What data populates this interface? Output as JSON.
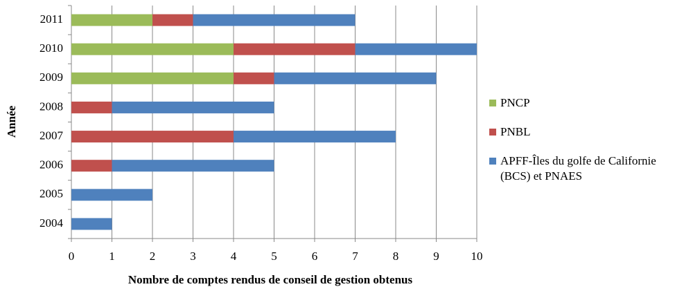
{
  "chart_data": {
    "type": "stacked_barh",
    "y_label": "Année",
    "x_label": "Nombre de comptes rendus de conseil de gestion obtenus",
    "categories": [
      "2004",
      "2005",
      "2006",
      "2007",
      "2008",
      "2009",
      "2010",
      "2011"
    ],
    "series": [
      {
        "name": "PNCP",
        "color": "#9bbb59",
        "values": [
          0,
          0,
          0,
          0,
          0,
          4,
          4,
          2
        ]
      },
      {
        "name": "PNBL",
        "color": "#c0504d",
        "values": [
          0,
          0,
          1,
          4,
          1,
          1,
          3,
          1
        ]
      },
      {
        "name": "APFF-Îles du golfe de Californie (BCS) et PNAES",
        "color": "#4f81bd",
        "values": [
          1,
          2,
          4,
          4,
          4,
          4,
          3,
          4
        ]
      }
    ],
    "xlim": [
      0,
      10
    ],
    "xticks": [
      0,
      1,
      2,
      3,
      4,
      5,
      6,
      7,
      8,
      9,
      10
    ],
    "grid": true,
    "legend": "right"
  }
}
